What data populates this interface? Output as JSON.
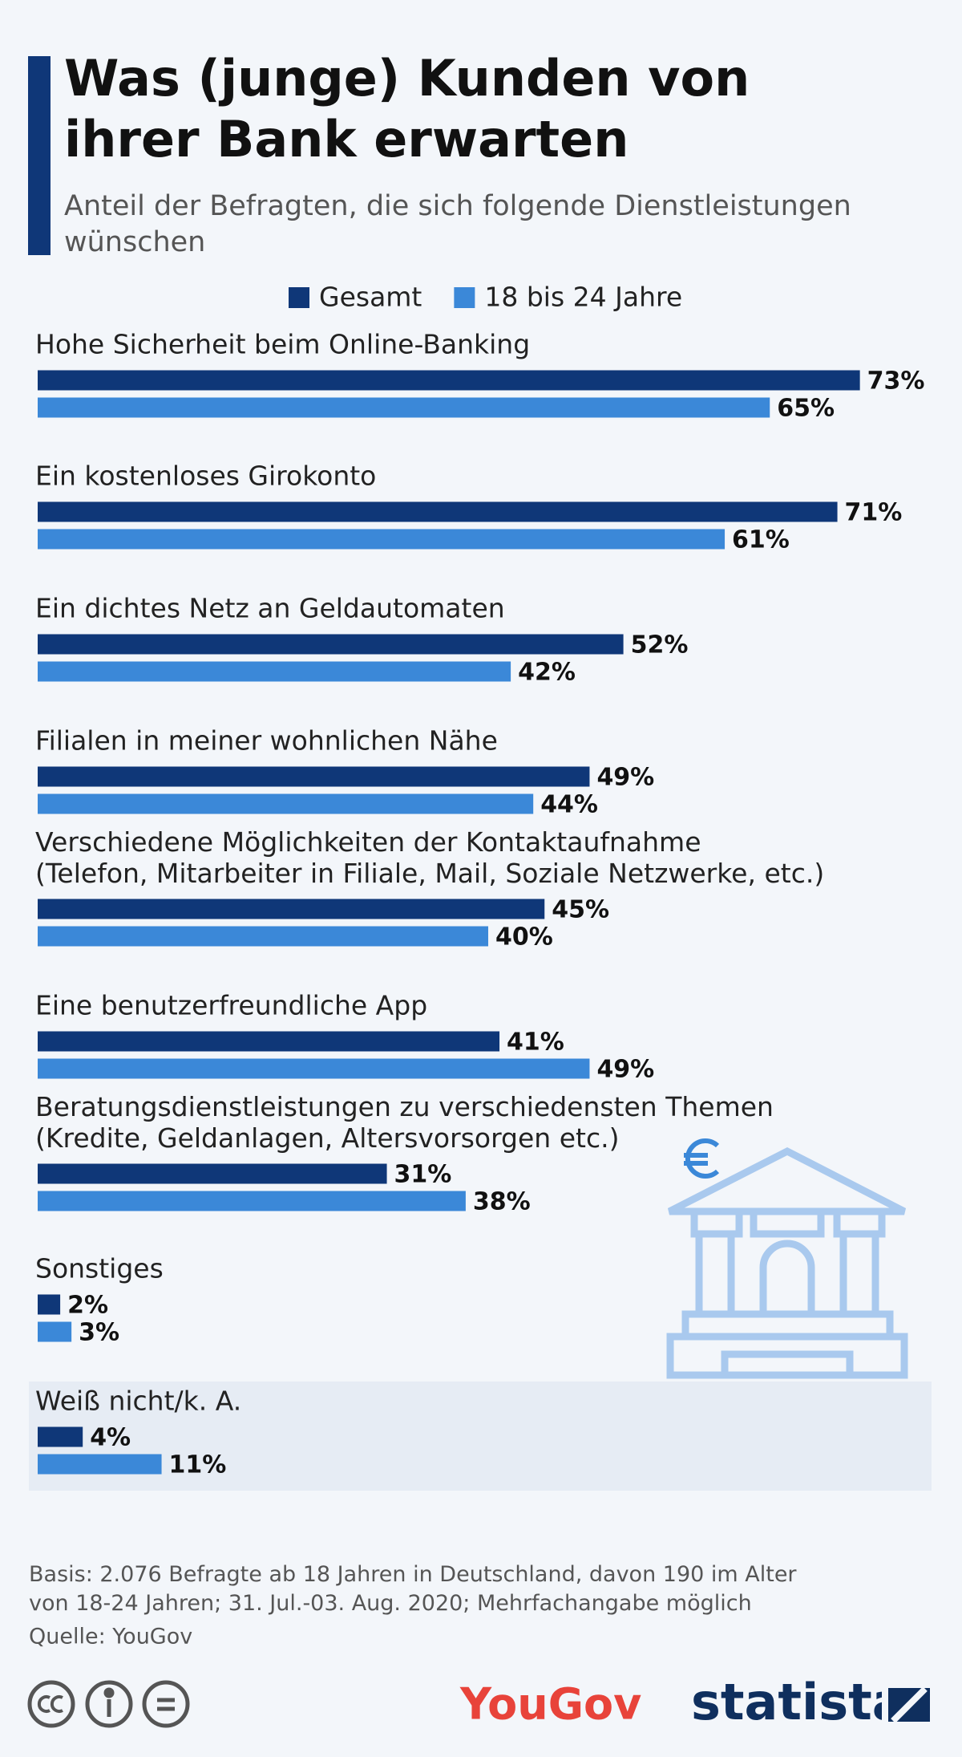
{
  "chart_data": {
    "type": "bar",
    "orientation": "horizontal",
    "title": "Was (junge) Kunden von\nihrer Bank erwarten",
    "subtitle": "Anteil der Befragten, die sich folgende Dienstleistungen\nwünschen",
    "categories": [
      "Hohe Sicherheit beim Online-Banking",
      "Ein kostenloses Girokonto",
      "Ein dichtes Netz an Geldautomaten",
      "Filialen in meiner wohnlichen Nähe",
      "Verschiedene Möglichkeiten der Kontaktaufnahme\n(Telefon, Mitarbeiter in Filiale, Mail, Soziale Netzwerke, etc.)",
      "Eine benutzerfreundliche App",
      "Beratungsdienstleistungen zu verschiedensten Themen\n(Kredite, Geldanlagen, Altersvorsorgen etc.)",
      "Sonstiges",
      "Weiß nicht/k. A."
    ],
    "series": [
      {
        "name": "Gesamt",
        "color": "#0f3778",
        "values": [
          73,
          71,
          52,
          49,
          45,
          41,
          31,
          2,
          4
        ],
        "value_labels": [
          "73%",
          "71%",
          "52%",
          "49%",
          "45%",
          "41%",
          "31%",
          "2%",
          "4%"
        ]
      },
      {
        "name": "18 bis 24 Jahre",
        "color": "#3b88d8",
        "values": [
          65,
          61,
          42,
          44,
          40,
          49,
          38,
          3,
          11
        ],
        "value_labels": [
          "65%",
          "61%",
          "42%",
          "44%",
          "40%",
          "49%",
          "38%",
          "3%",
          "11%"
        ]
      }
    ],
    "notes": "Basis: 2.076 Befragte ab 18 Jahren in Deutschland, davon 190 im Alter\nvon 18-24 Jahren; 31. Jul.-03. Aug. 2020; Mehrfachangabe möglich",
    "source": "Quelle: YouGov",
    "partner_logo": "YouGov",
    "brand": "statista"
  }
}
